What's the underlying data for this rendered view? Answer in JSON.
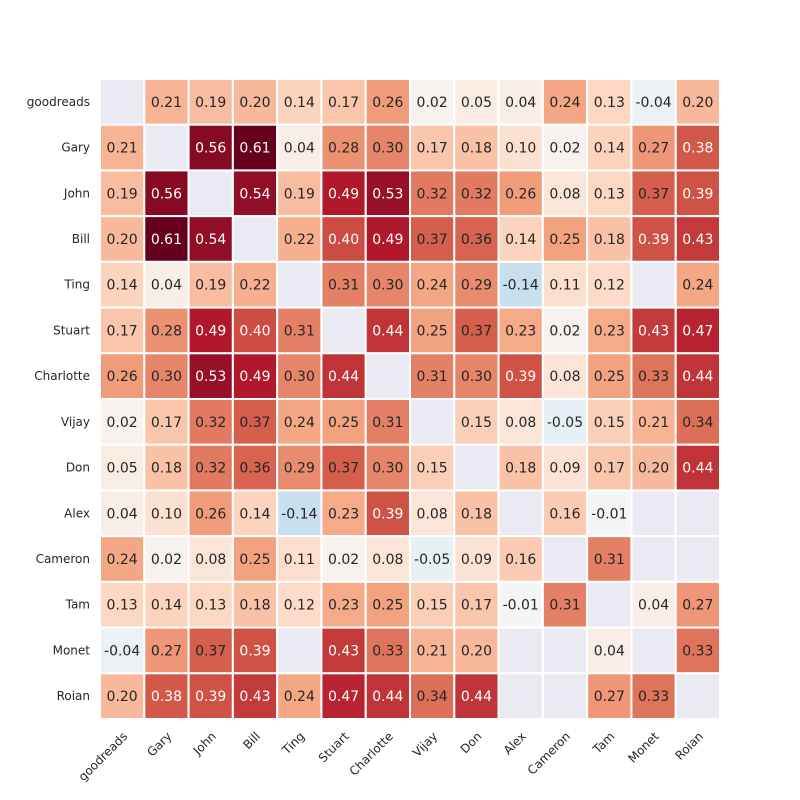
{
  "chart_data": {
    "type": "heatmap",
    "title": "",
    "xlabel": "",
    "ylabel": "",
    "labels": [
      "goodreads",
      "Gary",
      "John",
      "Bill",
      "Ting",
      "Stuart",
      "Charlotte",
      "Vijay",
      "Don",
      "Alex",
      "Cameron",
      "Tam",
      "Monet",
      "Roian"
    ],
    "matrix": [
      [
        null,
        0.21,
        0.19,
        0.2,
        0.14,
        0.17,
        0.26,
        0.02,
        0.05,
        0.04,
        0.24,
        0.13,
        -0.04,
        0.2
      ],
      [
        0.21,
        null,
        0.56,
        0.61,
        0.04,
        0.28,
        0.3,
        0.17,
        0.18,
        0.1,
        0.02,
        0.14,
        0.27,
        0.38
      ],
      [
        0.19,
        0.56,
        null,
        0.54,
        0.19,
        0.49,
        0.53,
        0.32,
        0.32,
        0.26,
        0.08,
        0.13,
        0.37,
        0.39
      ],
      [
        0.2,
        0.61,
        0.54,
        null,
        0.22,
        0.4,
        0.49,
        0.37,
        0.36,
        0.14,
        0.25,
        0.18,
        0.39,
        0.43
      ],
      [
        0.14,
        0.04,
        0.19,
        0.22,
        null,
        0.31,
        0.3,
        0.24,
        0.29,
        -0.14,
        0.11,
        0.12,
        null,
        0.24
      ],
      [
        0.17,
        0.28,
        0.49,
        0.4,
        0.31,
        null,
        0.44,
        0.25,
        0.37,
        0.23,
        0.02,
        0.23,
        0.43,
        0.47
      ],
      [
        0.26,
        0.3,
        0.53,
        0.49,
        0.3,
        0.44,
        null,
        0.31,
        0.3,
        0.39,
        0.08,
        0.25,
        0.33,
        0.44
      ],
      [
        0.02,
        0.17,
        0.32,
        0.37,
        0.24,
        0.25,
        0.31,
        null,
        0.15,
        0.08,
        -0.05,
        0.15,
        0.21,
        0.34
      ],
      [
        0.05,
        0.18,
        0.32,
        0.36,
        0.29,
        0.37,
        0.3,
        0.15,
        null,
        0.18,
        0.09,
        0.17,
        0.2,
        0.44
      ],
      [
        0.04,
        0.1,
        0.26,
        0.14,
        -0.14,
        0.23,
        0.39,
        0.08,
        0.18,
        null,
        0.16,
        -0.01,
        null,
        null
      ],
      [
        0.24,
        0.02,
        0.08,
        0.25,
        0.11,
        0.02,
        0.08,
        -0.05,
        0.09,
        0.16,
        null,
        0.31,
        null,
        null
      ],
      [
        0.13,
        0.14,
        0.13,
        0.18,
        0.12,
        0.23,
        0.25,
        0.15,
        0.17,
        -0.01,
        0.31,
        null,
        0.04,
        0.27
      ],
      [
        -0.04,
        0.27,
        0.37,
        0.39,
        null,
        0.43,
        0.33,
        0.21,
        0.2,
        null,
        null,
        0.04,
        null,
        0.33
      ],
      [
        0.2,
        0.38,
        0.39,
        0.43,
        0.24,
        0.47,
        0.44,
        0.34,
        0.44,
        null,
        null,
        0.27,
        0.33,
        null
      ]
    ],
    "color_scale": "RdBu_r",
    "vmin": -0.61,
    "vmax": 0.61,
    "value_format": "2dp",
    "missing_color": "#eaeaf2",
    "gridline_color": "#ffffff"
  }
}
